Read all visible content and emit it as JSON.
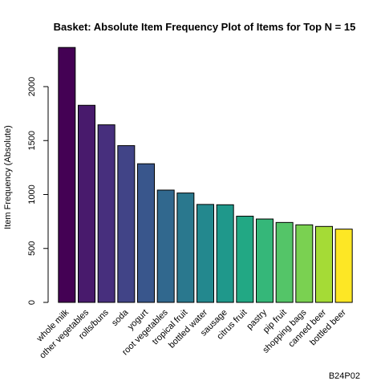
{
  "chart_data": {
    "type": "bar",
    "title": "Basket: Absolute Item Frequency Plot of Items for Top N = 15",
    "xlabel": "",
    "ylabel": "Item Frequency (Absolute)",
    "ylim": [
      0,
      2513
    ],
    "yticks": [
      0,
      500,
      1000,
      1500,
      2000
    ],
    "ytick_labels": [
      "0",
      "500",
      "1000",
      "1500",
      "2000"
    ],
    "grid": false,
    "legend": "none",
    "categories": [
      "whole milk",
      "other vegetables",
      "rolls/buns",
      "soda",
      "yogurt",
      "root vegetables",
      "tropical fruit",
      "bottled water",
      "sausage",
      "citrus fruit",
      "pastry",
      "pip fruit",
      "shopping bags",
      "canned beer",
      "bottled beer"
    ],
    "values": [
      2363,
      1827,
      1646,
      1453,
      1285,
      1041,
      1014,
      908,
      905,
      799,
      773,
      741,
      719,
      704,
      679
    ],
    "colors": [
      "#440154",
      "#481A6C",
      "#472F7D",
      "#414487",
      "#39568C",
      "#31688E",
      "#2A788E",
      "#23888E",
      "#1F988B",
      "#22A884",
      "#35B779",
      "#54C568",
      "#7AD151",
      "#A5DB36",
      "#FDE725"
    ],
    "caption": "B24P02"
  }
}
